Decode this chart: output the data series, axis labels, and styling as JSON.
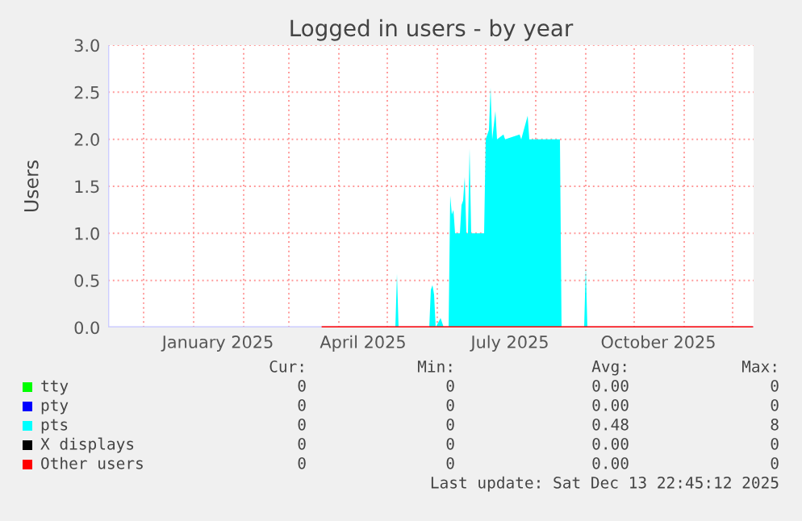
{
  "chart_data": {
    "type": "area",
    "title": "Logged in users - by year",
    "ylabel": "Users",
    "xlim": [
      "2024-11-09",
      "2025-12-14"
    ],
    "ylim": [
      0,
      3.0
    ],
    "yticks": [
      {
        "value": 0,
        "label": "0.0"
      },
      {
        "value": 0.5,
        "label": "0.5"
      },
      {
        "value": 1,
        "label": "1.0"
      },
      {
        "value": 1.5,
        "label": "1.5"
      },
      {
        "value": 2,
        "label": "2.0"
      },
      {
        "value": 2.5,
        "label": "2.5"
      },
      {
        "value": 3,
        "label": "3.0"
      }
    ],
    "xticks": [
      {
        "value": "2024-12-01",
        "label": null
      },
      {
        "value": "2025-01-01",
        "label": null
      },
      {
        "value": "2025-01-16",
        "label": "January 2025"
      },
      {
        "value": "2025-02-01",
        "label": null
      },
      {
        "value": "2025-03-01",
        "label": null
      },
      {
        "value": "2025-04-01",
        "label": null
      },
      {
        "value": "2025-04-16",
        "label": "April 2025"
      },
      {
        "value": "2025-05-01",
        "label": null
      },
      {
        "value": "2025-06-01",
        "label": null
      },
      {
        "value": "2025-07-01",
        "label": null
      },
      {
        "value": "2025-07-16",
        "label": "July 2025"
      },
      {
        "value": "2025-08-01",
        "label": null
      },
      {
        "value": "2025-09-01",
        "label": null
      },
      {
        "value": "2025-10-01",
        "label": null
      },
      {
        "value": "2025-10-16",
        "label": "October 2025"
      },
      {
        "value": "2025-11-01",
        "label": null
      },
      {
        "value": "2025-12-01",
        "label": null
      }
    ],
    "grid": true,
    "legend": "bottom",
    "series": [
      {
        "name": "tty",
        "color": "#00ff00",
        "type": "line"
      },
      {
        "name": "pty",
        "color": "#0000ff",
        "type": "line"
      },
      {
        "name": "pts",
        "color": "#00ffff",
        "x": [
          "2025-03-22",
          "2025-05-06",
          "2025-05-07",
          "2025-05-08",
          "2025-05-27",
          "2025-05-28",
          "2025-05-29",
          "2025-05-30",
          "2025-05-31",
          "2025-06-03",
          "2025-06-05",
          "2025-06-08",
          "2025-06-09",
          "2025-06-10",
          "2025-06-11",
          "2025-06-12",
          "2025-06-15",
          "2025-06-16",
          "2025-06-17",
          "2025-06-18",
          "2025-06-19",
          "2025-06-20",
          "2025-06-21",
          "2025-06-22",
          "2025-06-30",
          "2025-07-01",
          "2025-07-03",
          "2025-07-04",
          "2025-07-05",
          "2025-07-07",
          "2025-07-08",
          "2025-07-12",
          "2025-07-13",
          "2025-07-22",
          "2025-07-23",
          "2025-07-27",
          "2025-07-28",
          "2025-08-16",
          "2025-08-17",
          "2025-08-31",
          "2025-09-01",
          "2025-09-02",
          "2025-12-13"
        ],
        "values": [
          0,
          0,
          0.57,
          0,
          0,
          0.4,
          0.45,
          0.35,
          0,
          0.1,
          0,
          0,
          1.4,
          1.2,
          1.25,
          1.0,
          1.0,
          1.3,
          1.35,
          1.6,
          1.0,
          1.0,
          1.9,
          1.0,
          1.0,
          2.0,
          2.1,
          2.55,
          2.0,
          2.3,
          2.0,
          2.05,
          2.0,
          2.05,
          2.0,
          2.25,
          2.0,
          2.0,
          0,
          0,
          0.65,
          0,
          0
        ]
      },
      {
        "name": "X displays",
        "color": "#000000",
        "type": "line"
      },
      {
        "name": "Other users",
        "color": "#ff0000",
        "type": "line",
        "x": [
          "2025-03-22",
          "2025-12-13"
        ],
        "values": [
          0,
          0
        ]
      }
    ],
    "annotations": [
      "Cur:",
      "Min:",
      "Avg:",
      "Max:",
      "0",
      "0",
      "0.00",
      "0",
      "0",
      "0",
      "0.00",
      "0",
      "0",
      "0",
      "0.48",
      "8",
      "0",
      "0",
      "0.00",
      "0",
      "0",
      "0",
      "0.00",
      "0",
      "Last update: Sat Dec 13 22:45:12 2025"
    ]
  }
}
